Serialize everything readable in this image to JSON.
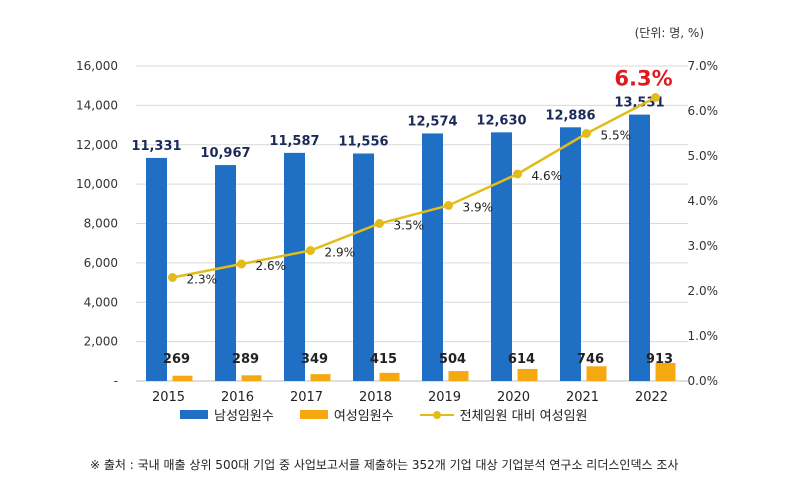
{
  "unit_label": "(단위: 명, %)",
  "source_note": "※ 출처 : 국내 매출 상위 500대 기업 중 사업보고서를 제출하는 352개 기업 대상 기업분석 연구소 리더스인덱스 조사",
  "colors": {
    "male": "#1f6fc5",
    "female": "#f5a80f",
    "ratio": "#e2bd1a",
    "highlight": "#e0191f",
    "bar_label": "#1c2a5a",
    "grid": "#d9d9d9",
    "axis_text": "#333333"
  },
  "chart_data": {
    "type": "bar",
    "categories": [
      "2015",
      "2016",
      "2017",
      "2018",
      "2019",
      "2020",
      "2021",
      "2022"
    ],
    "series": [
      {
        "name": "남성임원수",
        "chart": "bar",
        "axis": "left",
        "values": [
          11331,
          10967,
          11587,
          11556,
          12574,
          12630,
          12886,
          13531
        ],
        "labels": [
          "11,331",
          "10,967",
          "11,587",
          "11,556",
          "12,574",
          "12,630",
          "12,886",
          "13,531"
        ]
      },
      {
        "name": "여성임원수",
        "chart": "bar",
        "axis": "left",
        "values": [
          269,
          289,
          349,
          415,
          504,
          614,
          746,
          913
        ],
        "labels": [
          "269",
          "289",
          "349",
          "415",
          "504",
          "614",
          "746",
          "913"
        ]
      },
      {
        "name": "전체임원 대비 여성임원",
        "chart": "line",
        "axis": "right",
        "values": [
          2.3,
          2.6,
          2.9,
          3.5,
          3.9,
          4.6,
          5.5,
          6.3
        ],
        "labels": [
          "2.3%",
          "2.6%",
          "2.9%",
          "3.5%",
          "3.9%",
          "4.6%",
          "5.5%",
          "6.3%"
        ],
        "highlight_last": true
      }
    ],
    "y_left": {
      "range": [
        0,
        16000
      ],
      "ticks": [
        0,
        2000,
        4000,
        6000,
        8000,
        10000,
        12000,
        14000,
        16000
      ],
      "tick_labels": [
        "-",
        "2,000",
        "4,000",
        "6,000",
        "8,000",
        "10,000",
        "12,000",
        "14,000",
        "16,000"
      ]
    },
    "y_right": {
      "range": [
        0,
        7
      ],
      "ticks": [
        0,
        1,
        2,
        3,
        4,
        5,
        6,
        7
      ],
      "tick_labels": [
        "0.0%",
        "1.0%",
        "2.0%",
        "3.0%",
        "4.0%",
        "5.0%",
        "6.0%",
        "7.0%"
      ]
    },
    "grid": true,
    "legend_position": "bottom",
    "title": "",
    "xlabel": "",
    "ylabel": ""
  }
}
